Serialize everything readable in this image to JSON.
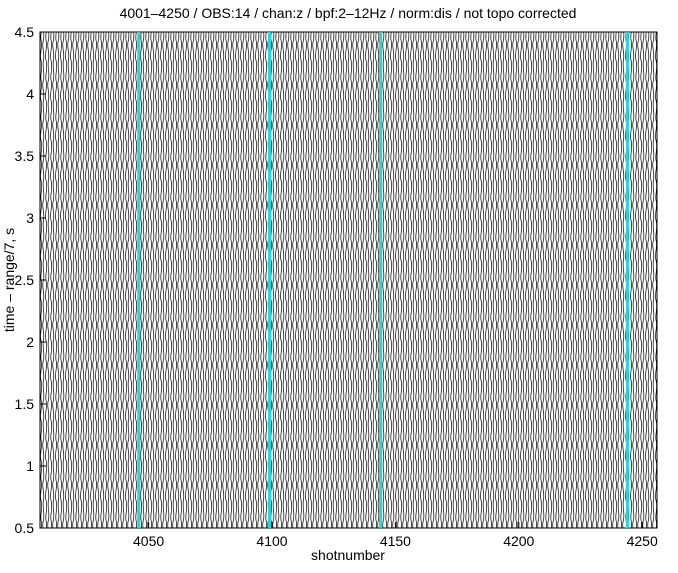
{
  "chart_data": {
    "type": "seismic",
    "title": "4001–4250 / OBS:14 / chan:z / bpf:2–12Hz / norm:dis / not topo corrected",
    "x_label": "shotnumber",
    "y_label": "time – range/7, s",
    "xlim": [
      4006,
      4256
    ],
    "xticks": [
      4050,
      4100,
      4150,
      4200,
      4250
    ],
    "ylim": [
      0.5,
      4.5
    ],
    "yticks": [
      0.5,
      1,
      1.5,
      2,
      2.5,
      3,
      3.5,
      4,
      4.5
    ],
    "highlighted_traces": {
      "color": "#22d8e0",
      "x": [
        4046,
        4099,
        4144,
        4244
      ]
    }
  }
}
